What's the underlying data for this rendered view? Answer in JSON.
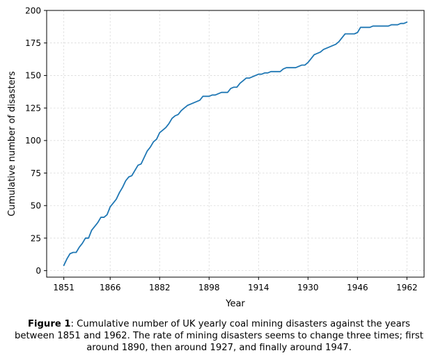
{
  "chart_data": {
    "type": "line",
    "xlabel": "Year",
    "ylabel": "Cumulative number of disasters",
    "xlim": [
      1845.45,
      1967.55
    ],
    "ylim": [
      -5,
      200
    ],
    "xticks": [
      1851,
      1866,
      1882,
      1898,
      1914,
      1930,
      1946,
      1962
    ],
    "yticks": [
      0,
      25,
      50,
      75,
      100,
      125,
      150,
      175,
      200
    ],
    "grid": true,
    "series": [
      {
        "color": "#1f77b4",
        "x": [
          1851,
          1852,
          1853,
          1854,
          1855,
          1856,
          1857,
          1858,
          1859,
          1860,
          1861,
          1862,
          1863,
          1864,
          1865,
          1866,
          1867,
          1868,
          1869,
          1870,
          1871,
          1872,
          1873,
          1874,
          1875,
          1876,
          1877,
          1878,
          1879,
          1880,
          1881,
          1882,
          1883,
          1884,
          1885,
          1886,
          1887,
          1888,
          1889,
          1890,
          1891,
          1892,
          1893,
          1894,
          1895,
          1896,
          1897,
          1898,
          1899,
          1900,
          1901,
          1902,
          1903,
          1904,
          1905,
          1906,
          1907,
          1908,
          1909,
          1910,
          1911,
          1912,
          1913,
          1914,
          1915,
          1916,
          1917,
          1918,
          1919,
          1920,
          1921,
          1922,
          1923,
          1924,
          1925,
          1926,
          1927,
          1928,
          1929,
          1930,
          1931,
          1932,
          1933,
          1934,
          1935,
          1936,
          1937,
          1938,
          1939,
          1940,
          1941,
          1942,
          1943,
          1944,
          1945,
          1946,
          1947,
          1948,
          1949,
          1950,
          1951,
          1952,
          1953,
          1954,
          1955,
          1956,
          1957,
          1958,
          1959,
          1960,
          1961,
          1962
        ],
        "values": [
          4,
          9,
          13,
          14,
          14,
          18,
          21,
          25,
          25,
          31,
          34,
          37,
          41,
          41,
          43,
          49,
          52,
          55,
          60,
          64,
          69,
          72,
          73,
          77,
          81,
          82,
          87,
          92,
          95,
          99,
          101,
          106,
          108,
          110,
          113,
          117,
          119,
          120,
          123,
          125,
          127,
          128,
          129,
          130,
          131,
          134,
          134,
          134,
          135,
          135,
          136,
          137,
          137,
          137,
          140,
          141,
          141,
          144,
          146,
          148,
          148,
          149,
          150,
          151,
          151,
          152,
          152,
          153,
          153,
          153,
          153,
          155,
          156,
          156,
          156,
          156,
          157,
          158,
          158,
          160,
          163,
          166,
          167,
          168,
          170,
          171,
          172,
          173,
          174,
          176,
          179,
          182,
          182,
          182,
          182,
          183,
          187,
          187,
          187,
          187,
          188,
          188,
          188,
          188,
          188,
          188,
          189,
          189,
          189,
          190,
          190,
          191
        ]
      }
    ]
  },
  "caption": {
    "label": "Figure 1",
    "text": ": Cumulative number of UK yearly coal mining disasters against the years between 1851 and 1962. The rate of mining disasters seems to change three times; first around 1890, then around 1927, and finally around 1947."
  }
}
